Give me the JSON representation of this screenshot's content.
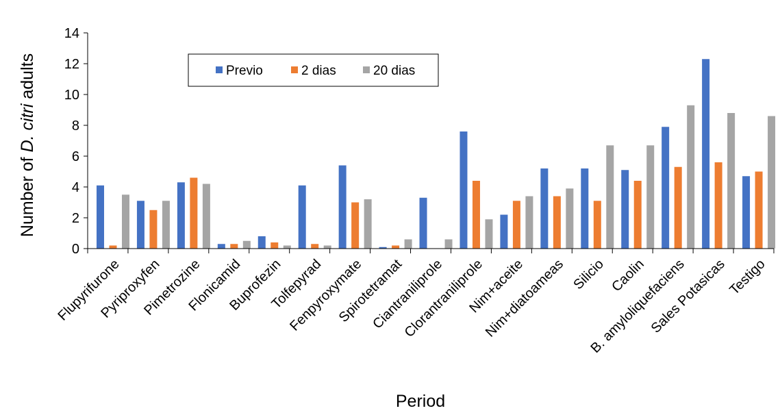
{
  "chart_data": {
    "type": "bar",
    "title": "",
    "xlabel": "Period",
    "ylabel_prefix": "Number of ",
    "ylabel_italic": "D. citri",
    "ylabel_suffix": " adults",
    "ylim": [
      0,
      14
    ],
    "yticks": [
      0,
      2,
      4,
      6,
      8,
      10,
      12,
      14
    ],
    "grid": false,
    "legend_position": "top-left",
    "categories": [
      "Flupyrifurone",
      "Pyriproxyfen",
      "Pimetrozine",
      "Flonicamid",
      "Buprofezin",
      "Tolfepyrad",
      "Fenpyroxymate",
      "Spirotetramat",
      "Ciantraniliprole",
      "Clorantraniliprole",
      "Nim+aceite",
      "Nim+diatoameas",
      "Silicio",
      "Caolin",
      "B. amyloliquefaciens",
      "Sales Potasicas",
      "Testigo"
    ],
    "series": [
      {
        "name": "Previo",
        "color": "#4472C4",
        "values": [
          4.1,
          3.1,
          4.3,
          0.3,
          0.8,
          4.1,
          5.4,
          0.1,
          3.3,
          7.6,
          2.2,
          5.2,
          5.2,
          5.1,
          7.9,
          12.3,
          4.7
        ]
      },
      {
        "name": "2 dias",
        "color": "#ED7D31",
        "values": [
          0.2,
          2.5,
          4.6,
          0.3,
          0.4,
          0.3,
          3.0,
          0.2,
          0.0,
          4.4,
          3.1,
          3.4,
          3.1,
          4.4,
          5.3,
          5.6,
          5.0
        ]
      },
      {
        "name": "20 dias",
        "color": "#A5A5A5",
        "values": [
          3.5,
          3.1,
          4.2,
          0.5,
          0.2,
          0.2,
          3.2,
          0.6,
          0.6,
          1.9,
          3.4,
          3.9,
          6.7,
          6.7,
          9.3,
          8.8,
          8.6
        ]
      }
    ]
  }
}
